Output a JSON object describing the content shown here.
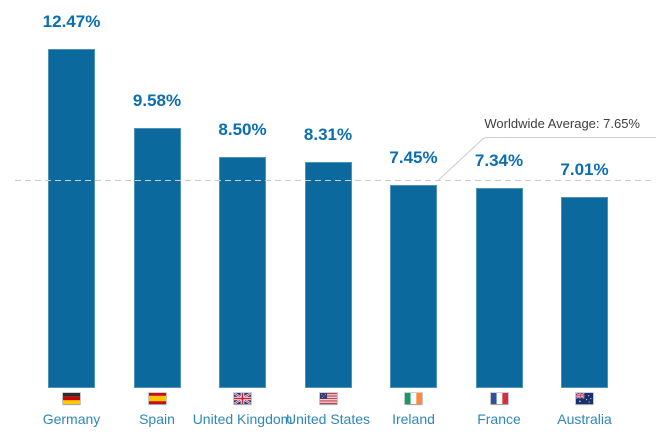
{
  "chart_data": {
    "type": "bar",
    "categories": [
      "Germany",
      "Spain",
      "United Kingdom",
      "United States",
      "Ireland",
      "France",
      "Australia"
    ],
    "values": [
      12.47,
      9.58,
      8.5,
      8.31,
      7.45,
      7.34,
      7.01
    ],
    "value_labels": [
      "12.47%",
      "9.58%",
      "8.50%",
      "8.31%",
      "7.45%",
      "7.34%",
      "7.01%"
    ],
    "flags": [
      "de",
      "es",
      "gb",
      "us",
      "ie",
      "fr",
      "au"
    ],
    "annotation": {
      "text": "Worldwide Average: 7.65%",
      "value": 7.65
    },
    "title": "",
    "xlabel": "",
    "ylabel": "",
    "ylim": [
      0,
      14.3
    ],
    "grid": false,
    "legend": "none",
    "colors": {
      "bar": "#0b699e",
      "value_label": "#0a6eb1",
      "category_label": "#2e87b9",
      "annotation_text": "#3f3f3f",
      "annotation_line": "#cccccc",
      "background": "#ffffff"
    }
  }
}
